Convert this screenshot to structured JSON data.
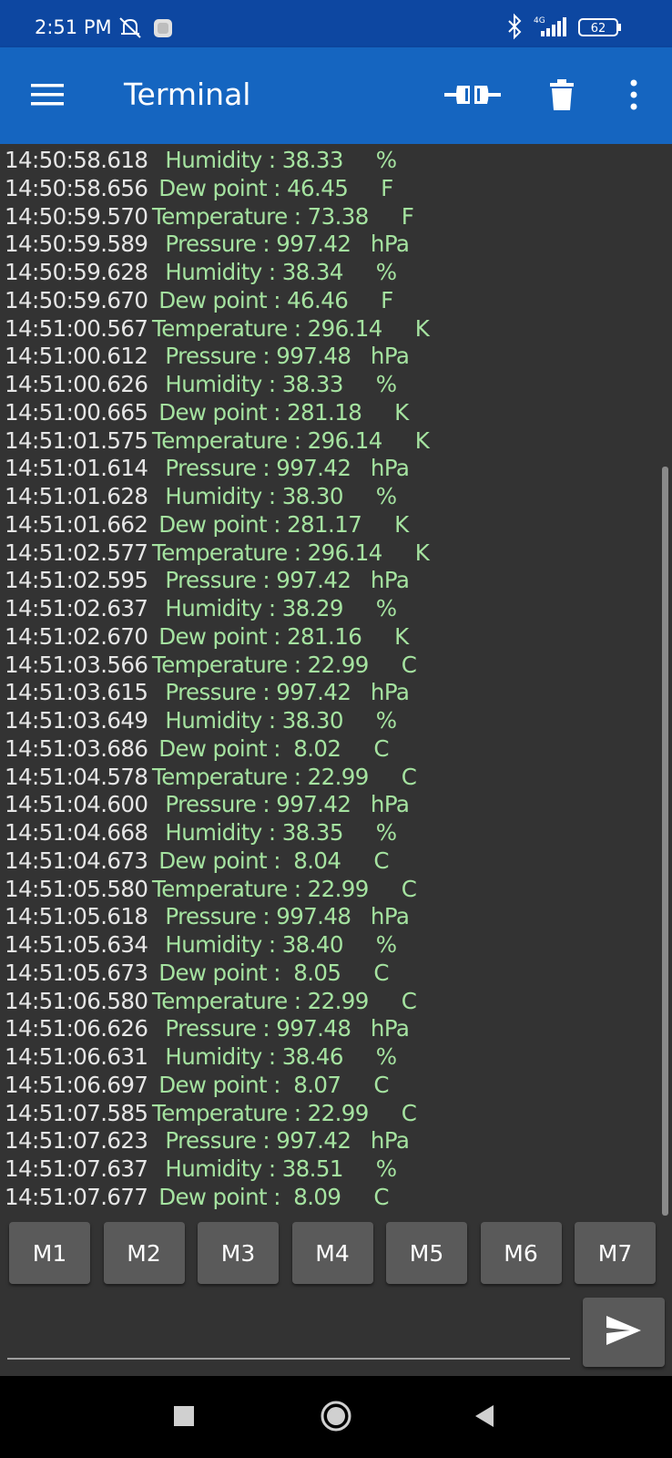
{
  "status_bar": {
    "time": "2:51 PM",
    "network": "4G",
    "battery": "62"
  },
  "app_bar": {
    "title": "Terminal"
  },
  "terminal": {
    "lines": [
      {
        "ts": "14:50:58.618",
        "msg": "  Humidity : 38.33     %"
      },
      {
        "ts": "14:50:58.656",
        "msg": " Dew point : 46.45     F"
      },
      {
        "ts": "14:50:59.570",
        "msg": "Temperature : 73.38     F"
      },
      {
        "ts": "14:50:59.589",
        "msg": "  Pressure : 997.42   hPa"
      },
      {
        "ts": "14:50:59.628",
        "msg": "  Humidity : 38.34     %"
      },
      {
        "ts": "14:50:59.670",
        "msg": " Dew point : 46.46     F"
      },
      {
        "ts": "14:51:00.567",
        "msg": "Temperature : 296.14     K"
      },
      {
        "ts": "14:51:00.612",
        "msg": "  Pressure : 997.48   hPa"
      },
      {
        "ts": "14:51:00.626",
        "msg": "  Humidity : 38.33     %"
      },
      {
        "ts": "14:51:00.665",
        "msg": " Dew point : 281.18     K"
      },
      {
        "ts": "14:51:01.575",
        "msg": "Temperature : 296.14     K"
      },
      {
        "ts": "14:51:01.614",
        "msg": "  Pressure : 997.42   hPa"
      },
      {
        "ts": "14:51:01.628",
        "msg": "  Humidity : 38.30     %"
      },
      {
        "ts": "14:51:01.662",
        "msg": " Dew point : 281.17     K"
      },
      {
        "ts": "14:51:02.577",
        "msg": "Temperature : 296.14     K"
      },
      {
        "ts": "14:51:02.595",
        "msg": "  Pressure : 997.42   hPa"
      },
      {
        "ts": "14:51:02.637",
        "msg": "  Humidity : 38.29     %"
      },
      {
        "ts": "14:51:02.670",
        "msg": " Dew point : 281.16     K"
      },
      {
        "ts": "14:51:03.566",
        "msg": "Temperature : 22.99     C"
      },
      {
        "ts": "14:51:03.615",
        "msg": "  Pressure : 997.42   hPa"
      },
      {
        "ts": "14:51:03.649",
        "msg": "  Humidity : 38.30     %"
      },
      {
        "ts": "14:51:03.686",
        "msg": " Dew point :  8.02     C"
      },
      {
        "ts": "14:51:04.578",
        "msg": "Temperature : 22.99     C"
      },
      {
        "ts": "14:51:04.600",
        "msg": "  Pressure : 997.42   hPa"
      },
      {
        "ts": "14:51:04.668",
        "msg": "  Humidity : 38.35     %"
      },
      {
        "ts": "14:51:04.673",
        "msg": " Dew point :  8.04     C"
      },
      {
        "ts": "14:51:05.580",
        "msg": "Temperature : 22.99     C"
      },
      {
        "ts": "14:51:05.618",
        "msg": "  Pressure : 997.48   hPa"
      },
      {
        "ts": "14:51:05.634",
        "msg": "  Humidity : 38.40     %"
      },
      {
        "ts": "14:51:05.673",
        "msg": " Dew point :  8.05     C"
      },
      {
        "ts": "14:51:06.580",
        "msg": "Temperature : 22.99     C"
      },
      {
        "ts": "14:51:06.626",
        "msg": "  Pressure : 997.48   hPa"
      },
      {
        "ts": "14:51:06.631",
        "msg": "  Humidity : 38.46     %"
      },
      {
        "ts": "14:51:06.697",
        "msg": " Dew point :  8.07     C"
      },
      {
        "ts": "14:51:07.585",
        "msg": "Temperature : 22.99     C"
      },
      {
        "ts": "14:51:07.623",
        "msg": "  Pressure : 997.42   hPa"
      },
      {
        "ts": "14:51:07.637",
        "msg": "  Humidity : 38.51     %"
      },
      {
        "ts": "14:51:07.677",
        "msg": " Dew point :  8.09     C"
      }
    ]
  },
  "macros": [
    "M1",
    "M2",
    "M3",
    "M4",
    "M5",
    "M6",
    "M7"
  ],
  "send": {
    "input_value": "",
    "placeholder": ""
  },
  "icons": {
    "menu": "hamburger-menu-icon",
    "connect": "connect-plug-icon",
    "clear": "trash-icon",
    "overflow": "more-vert-icon",
    "send": "send-icon"
  },
  "colors": {
    "status_bar": "#0d47a1",
    "app_bar": "#1565c0",
    "terminal_bg": "#333333",
    "timestamp": "#e6e6e6",
    "received_text": "#a5e3a0",
    "button": "#5a5a5a"
  }
}
